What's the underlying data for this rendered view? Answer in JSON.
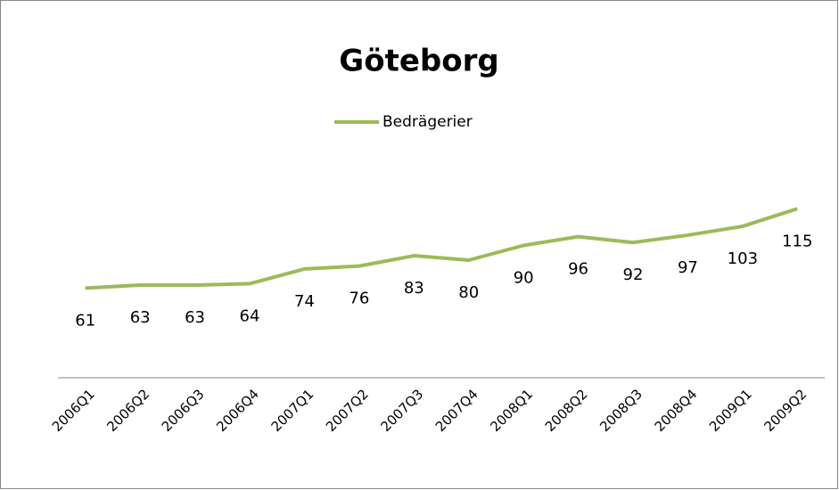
{
  "chart_data": {
    "type": "line",
    "title": "Göteborg",
    "categories": [
      "2006Q1",
      "2006Q2",
      "2006Q3",
      "2006Q4",
      "2007Q1",
      "2007Q2",
      "2007Q3",
      "2007Q4",
      "2008Q1",
      "2008Q2",
      "2008Q3",
      "2008Q4",
      "2009Q1",
      "2009Q2"
    ],
    "series": [
      {
        "name": "Bedrägerier",
        "color": "#9bbb59",
        "values": [
          61,
          63,
          63,
          64,
          74,
          76,
          83,
          80,
          90,
          96,
          92,
          97,
          103,
          115
        ]
      }
    ],
    "ylim": [
      0,
      140
    ],
    "legend": "top"
  }
}
